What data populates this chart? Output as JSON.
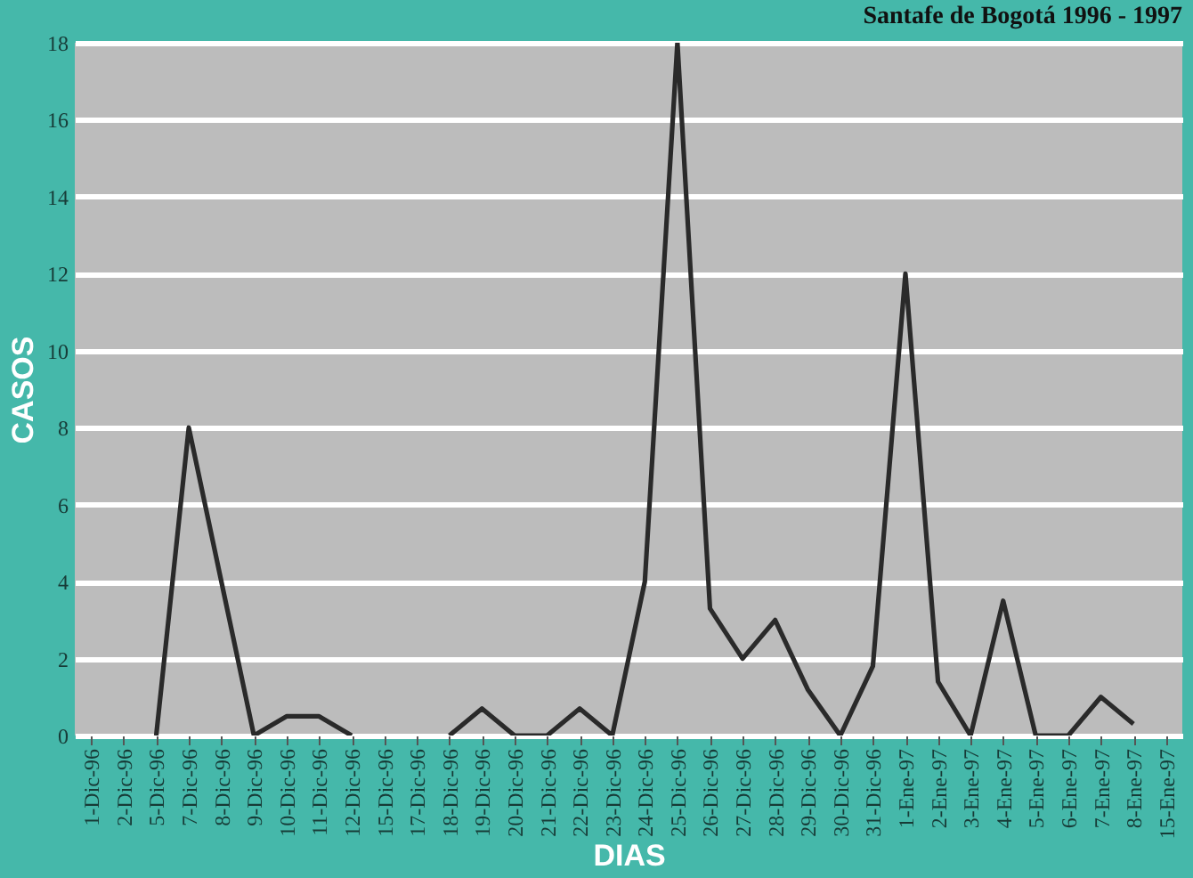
{
  "chart_data": {
    "type": "line",
    "title": "Santafe de Bogotá 1996 - 1997",
    "xlabel": "DIAS",
    "ylabel": "CASOS",
    "categories": [
      "1-Dic-96",
      "2-Dic-96",
      "5-Dic-96",
      "7-Dic-96",
      "8-Dic-96",
      "9-Dic-96",
      "10-Dic-96",
      "11-Dic-96",
      "12-Dic-96",
      "15-Dic-96",
      "17-Dic-96",
      "18-Dic-96",
      "19-Dic-96",
      "20-Dic-96",
      "21-Dic-96",
      "22-Dic-96",
      "23-Dic-96",
      "24-Dic-96",
      "25-Dic-96",
      "26-Dic-96",
      "27-Dic-96",
      "28-Dic-96",
      "29-Dic-96",
      "30-Dic-96",
      "31-Dic-96",
      "1-Ene-97",
      "2-Ene-97",
      "3-Ene-97",
      "4-Ene-97",
      "5-Ene-97",
      "6-Ene-97",
      "7-Ene-97",
      "8-Ene-97",
      "15-Ene-97"
    ],
    "series": [
      {
        "color": "#2a2a2a",
        "values": [
          null,
          null,
          0,
          8,
          4,
          0,
          0.5,
          0.5,
          0,
          null,
          null,
          0,
          0.7,
          0,
          0,
          0.7,
          0,
          4,
          18,
          3.3,
          2,
          3,
          1.2,
          0,
          1.8,
          12,
          1.4,
          0,
          3.5,
          0,
          0,
          1,
          0.3,
          null
        ]
      }
    ],
    "ylim": [
      0,
      18
    ],
    "yticks": [
      0,
      2,
      4,
      6,
      8,
      10,
      12,
      14,
      16,
      18
    ],
    "grid": "y",
    "marker": "none",
    "line_style": "solid"
  }
}
